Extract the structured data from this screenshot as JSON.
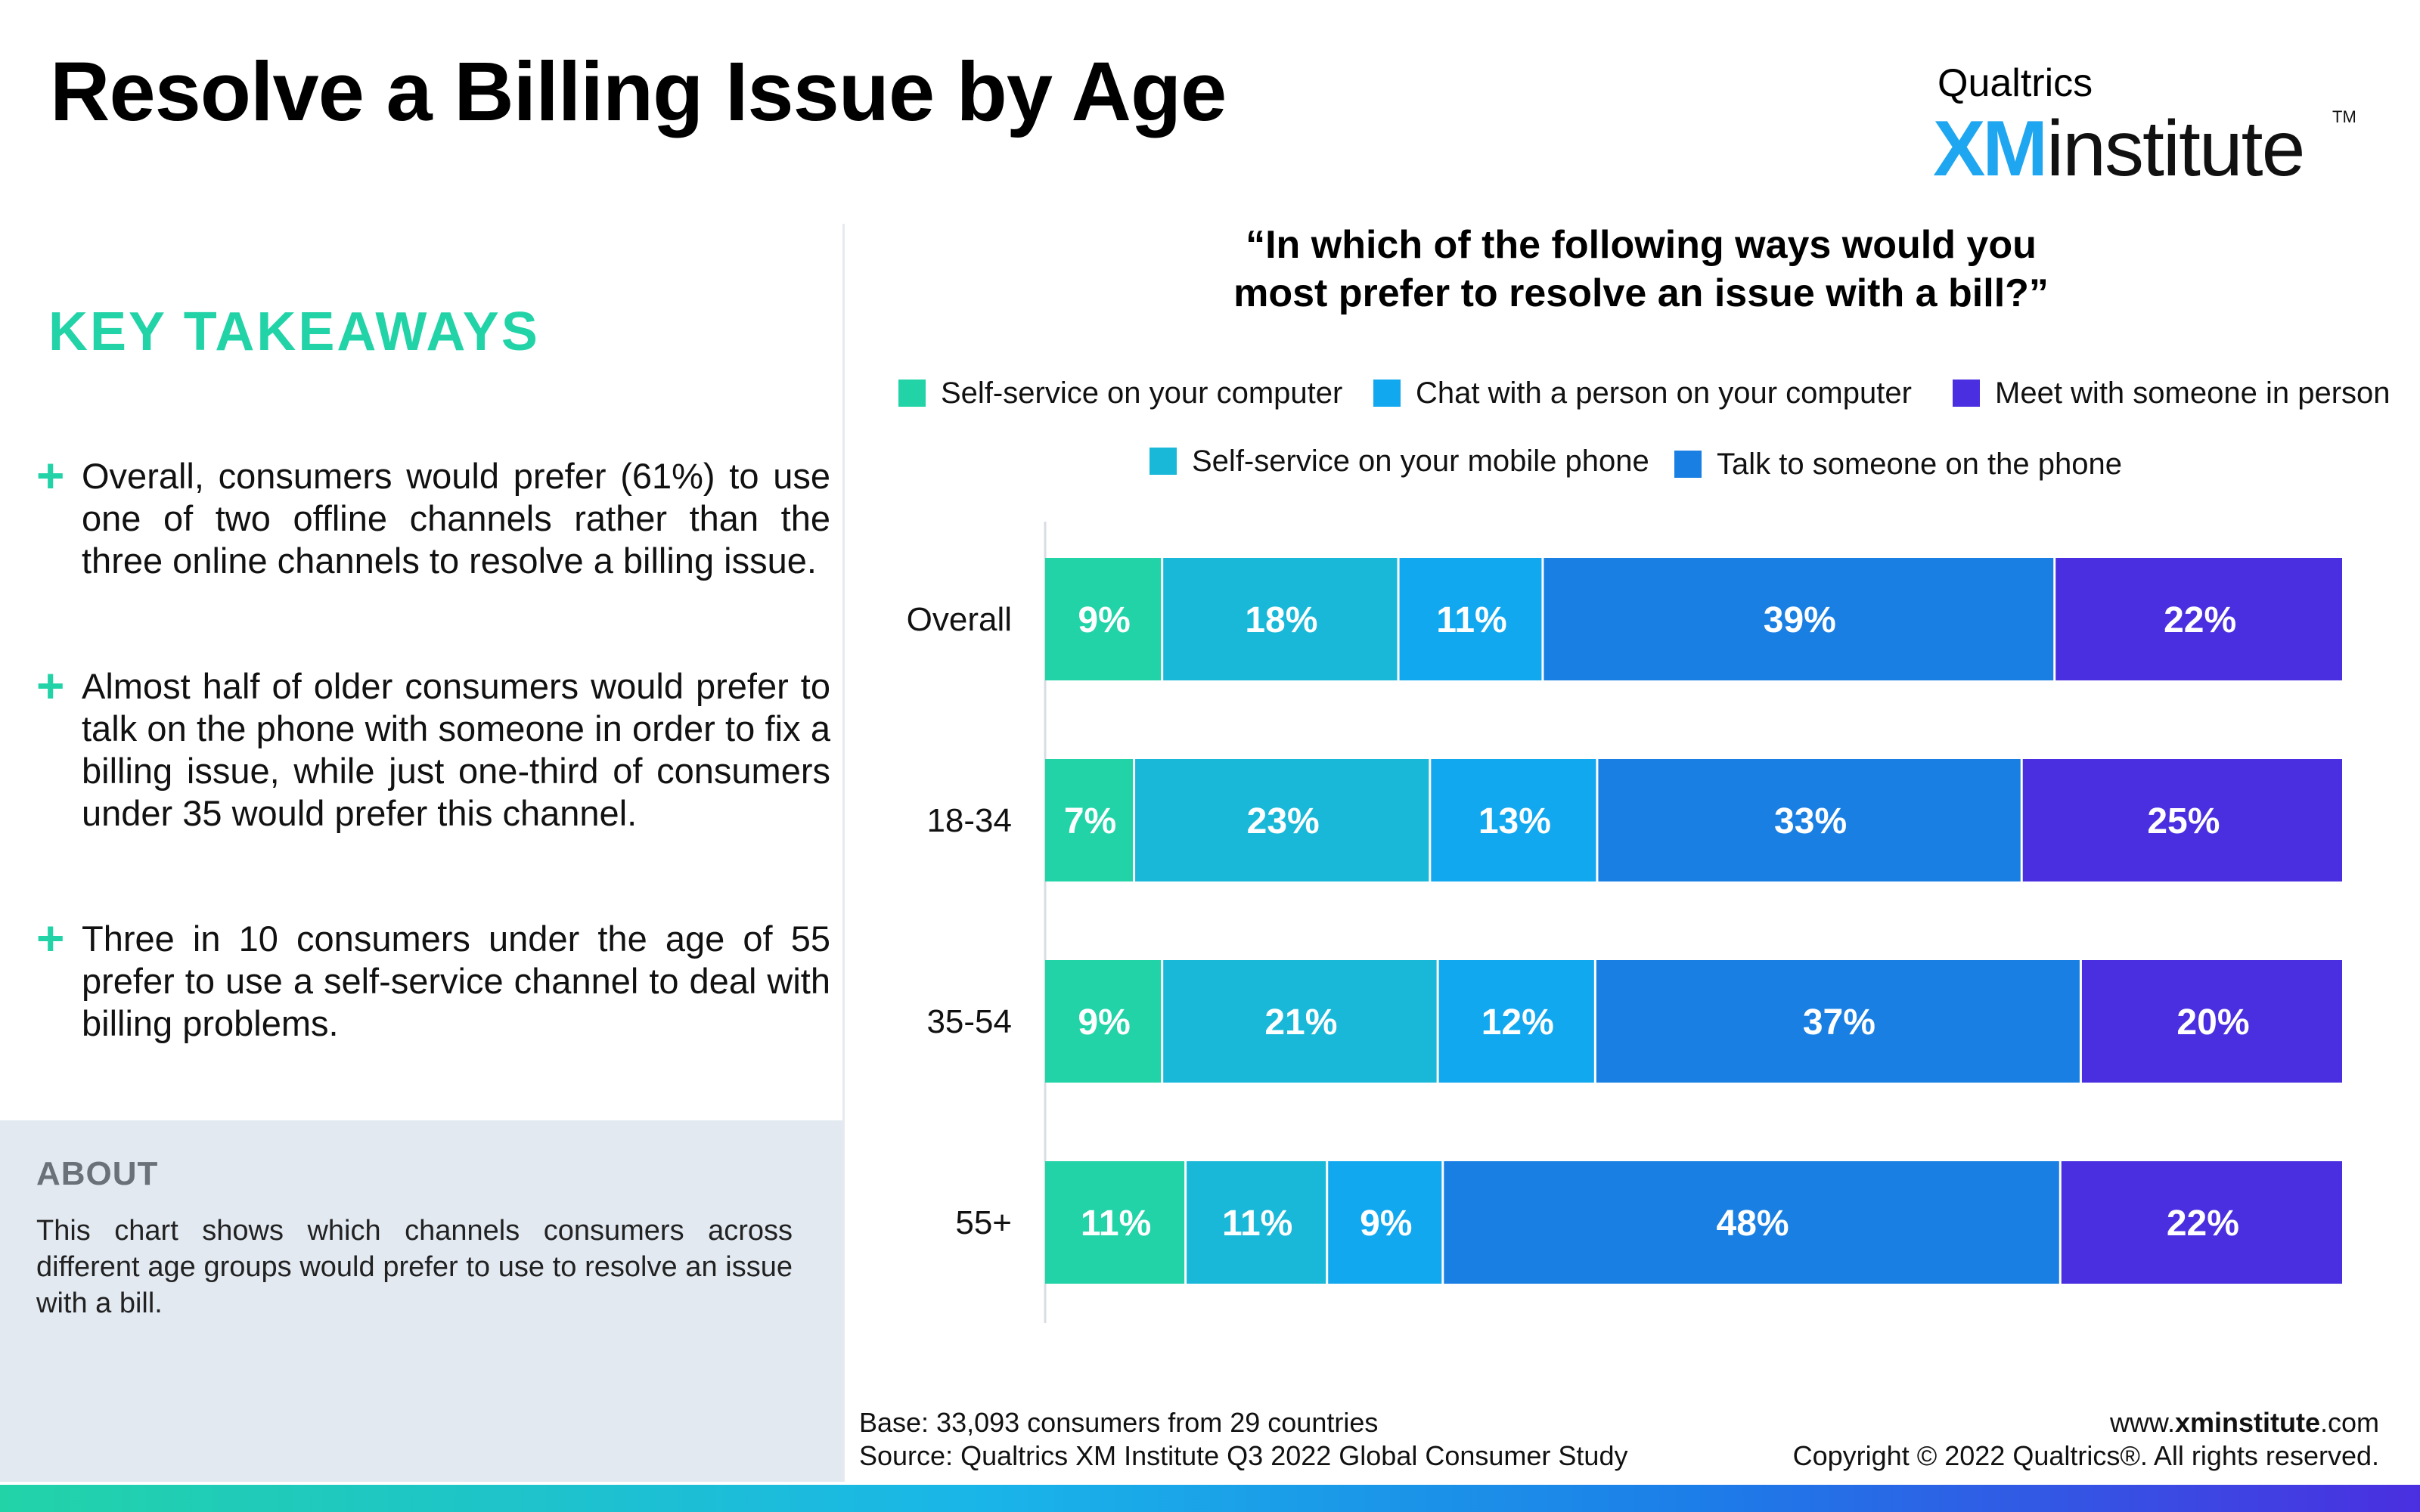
{
  "title": "Resolve a Billing Issue by Age",
  "logo": {
    "top": "Qualtrics",
    "xm": "XM",
    "institute": "institute",
    "tm": "TM"
  },
  "key_takeaways": {
    "heading": "KEY TAKEAWAYS",
    "items": [
      "Overall, consumers would prefer (61%) to use one of two offline channels rather than the three online channels to resolve a billing issue.",
      "Almost half of older consumers would prefer to talk on the phone with someone in order to fix a billing issue, while just one-third of consumers under 35 would prefer this channel.",
      "Three in 10 consumers under the age of 55 prefer to use a self-service channel to deal with billing problems."
    ]
  },
  "about": {
    "heading": "ABOUT",
    "body": "This chart shows which channels consumers across different age groups would prefer to use to resolve an issue with a bill."
  },
  "footer": {
    "base": "Base: 33,093 consumers from 29 countries",
    "source": "Source: Qualtrics XM Institute Q3 2022 Global Consumer Study",
    "site_prefix": "www.",
    "site_bold": "xminstitute",
    "site_suffix": ".com",
    "copyright": "Copyright © 2022 Qualtrics®. All rights reserved."
  },
  "chart_data": {
    "type": "bar",
    "orientation": "horizontal",
    "stacked": true,
    "title": "“In which of the following ways would you most prefer to resolve an issue with a bill?”",
    "title_line1": "“In which of the following ways would you",
    "title_line2": "most prefer to resolve an issue with a bill?”",
    "categories": [
      "Overall",
      "18-34",
      "35-54",
      "55+"
    ],
    "series": [
      {
        "name": "Self-service on your computer",
        "values": [
          9,
          7,
          9,
          11
        ],
        "color": "#22d3a8"
      },
      {
        "name": "Self-service on your mobile phone",
        "values": [
          18,
          23,
          21,
          11
        ],
        "color": "#1ab8d8"
      },
      {
        "name": "Chat with a person on your computer",
        "values": [
          11,
          13,
          12,
          9
        ],
        "color": "#12a8ef"
      },
      {
        "name": "Talk to someone on the phone",
        "values": [
          39,
          33,
          37,
          48
        ],
        "color": "#1a7fe2"
      },
      {
        "name": "Meet with someone in person",
        "values": [
          22,
          25,
          20,
          22
        ],
        "color": "#4a2fe0"
      }
    ],
    "value_suffix": "%",
    "legend_position": "top",
    "grid": false
  }
}
